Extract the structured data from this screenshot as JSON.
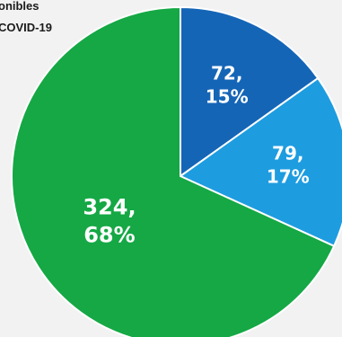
{
  "legend": {
    "line1": "onibles",
    "line2": "COVID-19"
  },
  "chart_data": {
    "type": "pie",
    "slices": [
      {
        "value": 72,
        "percent": "15%",
        "label_value": "72,",
        "label_percent": "15%",
        "color": "#1565b7"
      },
      {
        "value": 79,
        "percent": "17%",
        "label_value": "79,",
        "label_percent": "17%",
        "color": "#1e9ce0"
      },
      {
        "value": 324,
        "percent": "68%",
        "label_value": "324,",
        "label_percent": "68%",
        "color": "#15a845"
      }
    ],
    "start_angle": "top",
    "direction": "clockwise",
    "slice_border_color": "#ffffff"
  }
}
